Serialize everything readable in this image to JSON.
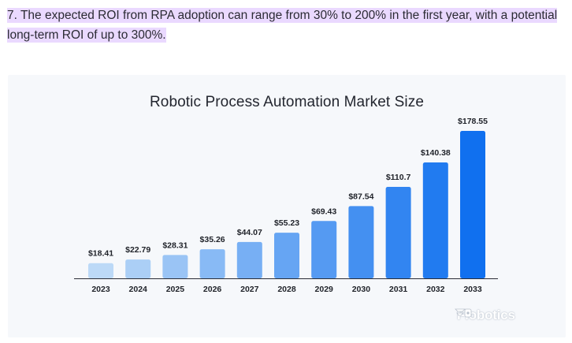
{
  "paragraph": {
    "text": "7. The expected ROI from RPA adoption can range from 30% to 200% in the first year, with a potential long-term ROI of up to 300%."
  },
  "brand": {
    "name": "Flobotics"
  },
  "colors": {
    "highlight": "#ead9ff",
    "card_bg": "#f6f8fb",
    "bar_start": "#bcd9f7",
    "bar_end": "#1070ef",
    "axis": "#2a2d36"
  },
  "chart_data": {
    "type": "bar",
    "title": "Robotic Process Automation Market Size",
    "xlabel": "",
    "ylabel": "",
    "categories": [
      "2023",
      "2024",
      "2025",
      "2026",
      "2027",
      "2028",
      "2029",
      "2030",
      "2031",
      "2032",
      "2033"
    ],
    "values": [
      18.41,
      22.79,
      28.31,
      35.26,
      44.07,
      55.23,
      69.43,
      87.54,
      110.7,
      140.38,
      178.55
    ],
    "data_labels": [
      "$18.41",
      "$22.79",
      "$28.31",
      "$35.26",
      "$44.07",
      "$55.23",
      "$69.43",
      "$87.54",
      "$110.7",
      "$140.38",
      "$178.55"
    ],
    "ylim": [
      0,
      178.55
    ],
    "grid": false,
    "legend": "none"
  }
}
